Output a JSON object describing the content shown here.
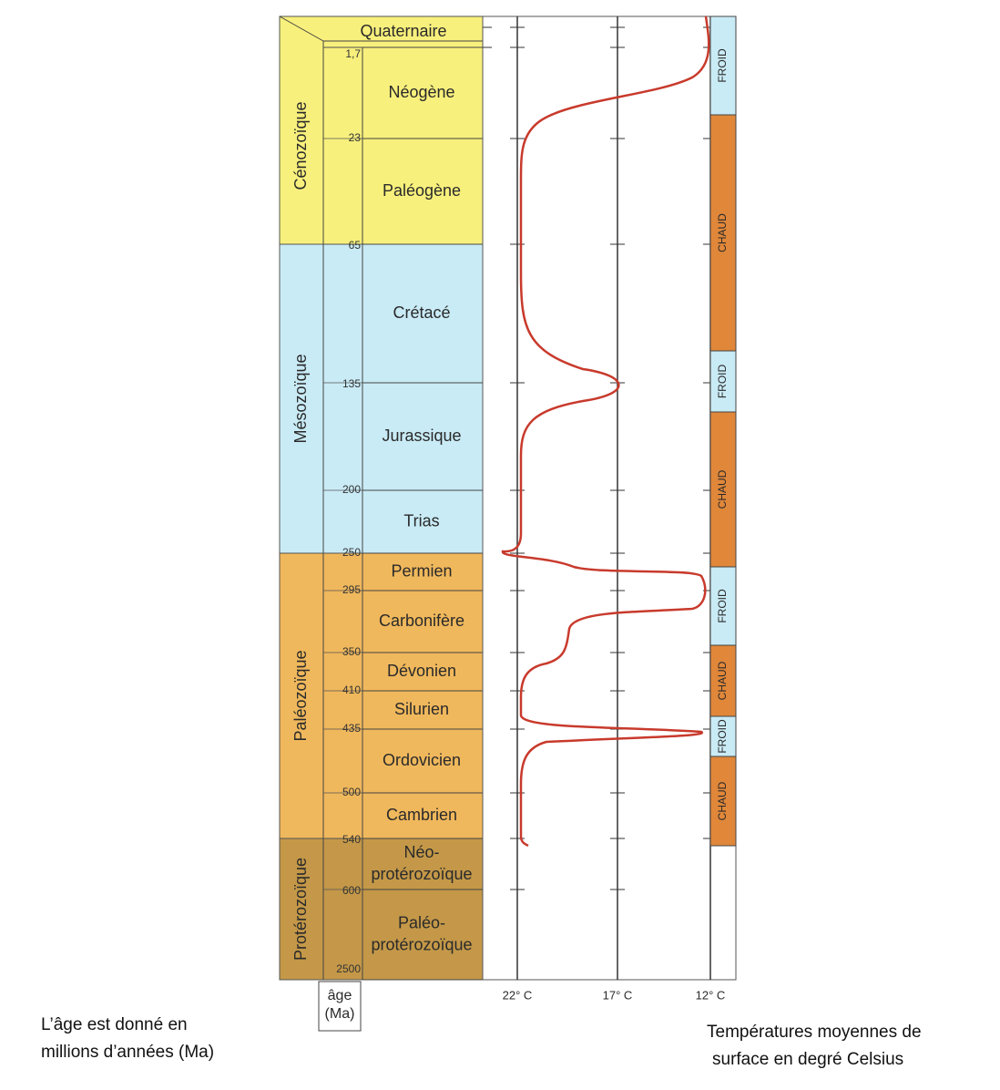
{
  "eras": [
    "Cénozoïque",
    "Mésozoïque",
    "Paléozoïque",
    "Protérozoïque"
  ],
  "periods": [
    [
      "Quaternaire"
    ],
    [
      "Néogène"
    ],
    [
      "Paléogène"
    ],
    [
      "Crétacé"
    ],
    [
      "Jurassique"
    ],
    [
      "Trias"
    ],
    [
      "Permien"
    ],
    [
      "Carbonifère"
    ],
    [
      "Dévonien"
    ],
    [
      "Silurien"
    ],
    [
      "Ordovicien"
    ],
    [
      "Cambrien"
    ],
    [
      "Néo-",
      "protérozoïque"
    ],
    [
      "Paléo-",
      "protérozoïque"
    ]
  ],
  "ages": [
    "1,7",
    "23",
    "65",
    "135",
    "200",
    "250",
    "295",
    "350",
    "410",
    "435",
    "500",
    "540",
    "600",
    "2500"
  ],
  "age_unit": [
    "âge",
    "(Ma)"
  ],
  "temperatures": [
    "22° C",
    "17° C",
    "12° C"
  ],
  "climate": [
    "FROID",
    "CHAUD",
    "FROID",
    "CHAUD",
    "FROID",
    "CHAUD",
    "FROID",
    "CHAUD"
  ],
  "caption_left": [
    "L’âge est donné en",
    "millions d’années (Ma)"
  ],
  "caption_right": [
    "Températures moyennes de",
    "surface en degré Celsius"
  ]
}
